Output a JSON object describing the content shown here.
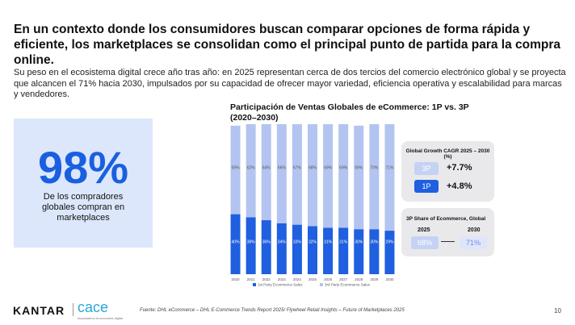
{
  "header": {
    "title": "En un contexto donde los consumidores buscan comparar opciones de forma rápida y eficiente, los marketplaces se consolidan como el principal punto de partida para la compra online.",
    "body": "Su peso en el ecosistema digital crece año tras año: en 2025 representan cerca de dos tercios del comercio electrónico global y se proyecta que alcancen el 71% hacia 2030, impulsados por su capacidad de ofrecer mayor variedad, eficiencia operativa y escalabilidad para marcas y vendedores."
  },
  "stat": {
    "value": "98%",
    "label": "De los compradores globales compran en marketplaces"
  },
  "chart_data": {
    "type": "stacked-bar",
    "title": "Participación de Ventas Globales de eCommerce: 1P vs. 3P (2020–2030)",
    "categories": [
      "2020",
      "2021",
      "2022",
      "2023",
      "2024",
      "2025",
      "2026",
      "2027",
      "2028",
      "2029",
      "2030"
    ],
    "ylim": [
      0,
      100
    ],
    "series": [
      {
        "name": "1st Party Ecommerce Sales",
        "color": "#1f5fe0",
        "values": [
          40,
          38,
          36,
          34,
          33,
          32,
          31,
          31,
          30,
          30,
          29
        ],
        "value_labels": [
          "40%",
          "38%",
          "36%",
          "34%",
          "33%",
          "32%",
          "31%",
          "31%",
          "30%",
          "30%",
          "29%"
        ]
      },
      {
        "name": "3rd Party Ecommerce Sales",
        "color": "#b3c4f0",
        "values": [
          59,
          62,
          64,
          66,
          67,
          68,
          69,
          69,
          69,
          70,
          71
        ],
        "value_labels": [
          "59%",
          "62%",
          "64%",
          "66%",
          "67%",
          "68%",
          "69%",
          "69%",
          "69%",
          "70%",
          "71%"
        ]
      }
    ]
  },
  "panels": {
    "growth": {
      "title": "Global Growth CAGR 2025 – 2030 (%)",
      "rows": [
        {
          "label": "3P",
          "value": "+7.7%"
        },
        {
          "label": "1P",
          "value": "+4.8%"
        }
      ]
    },
    "share": {
      "title": "3P Share of Ecommerce, Global",
      "from_year": "2025",
      "to_year": "2030",
      "from_value": "68%",
      "to_value": "71%"
    }
  },
  "footer": {
    "brand": "KANTAR",
    "partner": "cace",
    "partner_tagline": "Impulsamos la economía digital",
    "source": "Fuente: DHL eCommerce – DHL E-Commerce Trends Report 2025/ Flywheel Retail Insights – Future of Marketplaces 2025",
    "page": "10"
  }
}
